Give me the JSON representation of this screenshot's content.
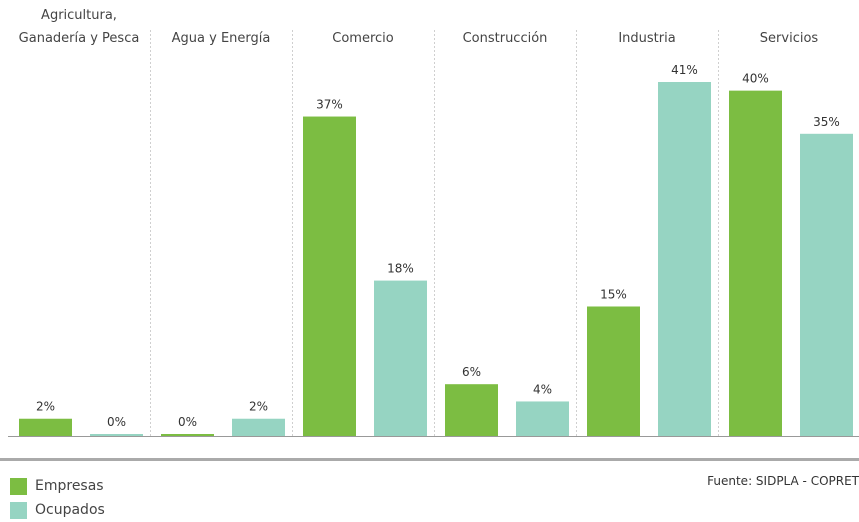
{
  "chart_data": {
    "type": "bar",
    "categories": [
      [
        "Agricultura,",
        "Ganadería y Pesca"
      ],
      [
        "Agua y Energía"
      ],
      [
        "Comercio"
      ],
      [
        "Construcción"
      ],
      [
        "Industria"
      ],
      [
        "Servicios"
      ]
    ],
    "series": [
      {
        "name": "Empresas",
        "color": "#7cbd42",
        "values": [
          2,
          0,
          37,
          6,
          15,
          40
        ],
        "labels": [
          "2%",
          "0%",
          "37%",
          "6%",
          "15%",
          "40%"
        ]
      },
      {
        "name": "Ocupados",
        "color": "#96d4c2",
        "values": [
          0,
          2,
          18,
          4,
          41,
          35
        ],
        "labels": [
          "0%",
          "2%",
          "18%",
          "4%",
          "41%",
          "35%"
        ]
      }
    ],
    "ylim": [
      0,
      41
    ],
    "grid": false,
    "legend": "bottom-left"
  },
  "source": "Fuente: SIDPLA - COPRET"
}
